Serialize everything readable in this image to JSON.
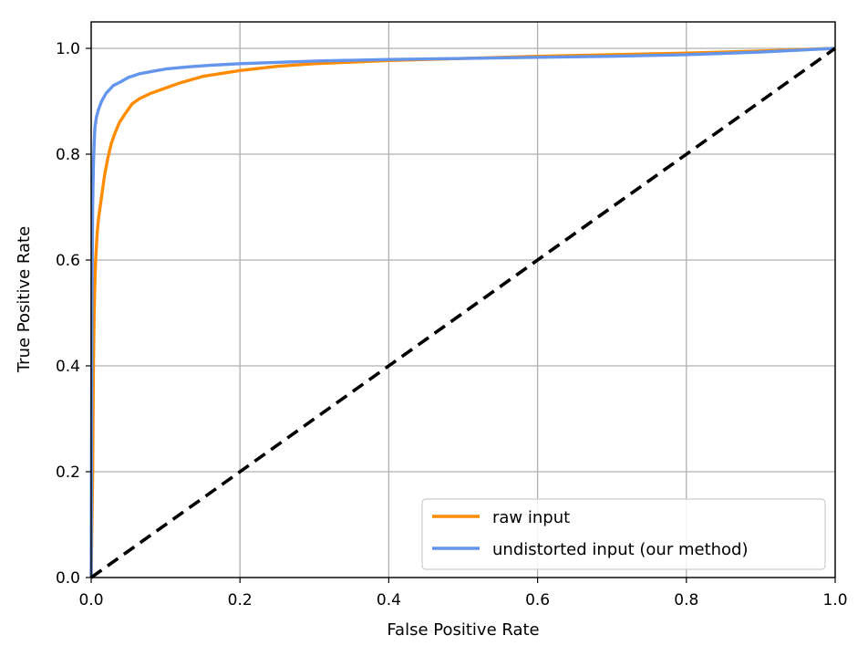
{
  "chart_data": {
    "type": "line",
    "title": "",
    "xlabel": "False Positive Rate",
    "ylabel": "True Positive Rate",
    "xlim": [
      0.0,
      1.0
    ],
    "ylim": [
      0.0,
      1.05
    ],
    "xticks": [
      0.0,
      0.2,
      0.4,
      0.6,
      0.8,
      1.0
    ],
    "yticks": [
      0.0,
      0.2,
      0.4,
      0.6,
      0.8,
      1.0
    ],
    "xtick_labels": [
      "0.0",
      "0.2",
      "0.4",
      "0.6",
      "0.8",
      "1.0"
    ],
    "ytick_labels": [
      "0.0",
      "0.2",
      "0.4",
      "0.6",
      "0.8",
      "1.0"
    ],
    "grid": true,
    "legend_position": "bottom-right",
    "series": [
      {
        "name": "raw input",
        "color": "#ff8c00",
        "style": "solid",
        "x": [
          0.0,
          0.002,
          0.003,
          0.004,
          0.005,
          0.006,
          0.008,
          0.01,
          0.012,
          0.015,
          0.018,
          0.022,
          0.027,
          0.032,
          0.038,
          0.045,
          0.055,
          0.065,
          0.08,
          0.1,
          0.12,
          0.15,
          0.2,
          0.25,
          0.3,
          0.4,
          0.5,
          0.6,
          0.7,
          0.8,
          0.9,
          1.0
        ],
        "y": [
          0.0,
          0.2,
          0.4,
          0.5,
          0.56,
          0.6,
          0.65,
          0.68,
          0.7,
          0.73,
          0.76,
          0.79,
          0.82,
          0.84,
          0.86,
          0.875,
          0.895,
          0.905,
          0.915,
          0.925,
          0.935,
          0.947,
          0.958,
          0.966,
          0.971,
          0.977,
          0.981,
          0.985,
          0.988,
          0.991,
          0.995,
          1.0
        ]
      },
      {
        "name": "undistorted input (our method)",
        "color": "#6495ed",
        "style": "solid",
        "x": [
          0.0,
          0.001,
          0.002,
          0.003,
          0.004,
          0.005,
          0.007,
          0.01,
          0.014,
          0.02,
          0.03,
          0.04,
          0.05,
          0.065,
          0.08,
          0.1,
          0.13,
          0.16,
          0.2,
          0.3,
          0.4,
          0.5,
          0.6,
          0.7,
          0.8,
          0.9,
          1.0
        ],
        "y": [
          0.0,
          0.5,
          0.7,
          0.78,
          0.82,
          0.85,
          0.87,
          0.885,
          0.9,
          0.915,
          0.93,
          0.937,
          0.945,
          0.952,
          0.956,
          0.961,
          0.965,
          0.968,
          0.971,
          0.976,
          0.979,
          0.981,
          0.983,
          0.985,
          0.988,
          0.993,
          1.0
        ]
      },
      {
        "name": "",
        "color": "#000000",
        "style": "dashed",
        "x": [
          0.0,
          1.0
        ],
        "y": [
          0.0,
          1.0
        ]
      }
    ],
    "legend": [
      {
        "label": "raw input",
        "color": "#ff8c00"
      },
      {
        "label": "undistorted input (our method)",
        "color": "#6495ed"
      }
    ]
  },
  "colors": {
    "grid": "#b0b0b0",
    "axis": "#000000",
    "legend_border": "#cccccc",
    "background": "#ffffff"
  }
}
